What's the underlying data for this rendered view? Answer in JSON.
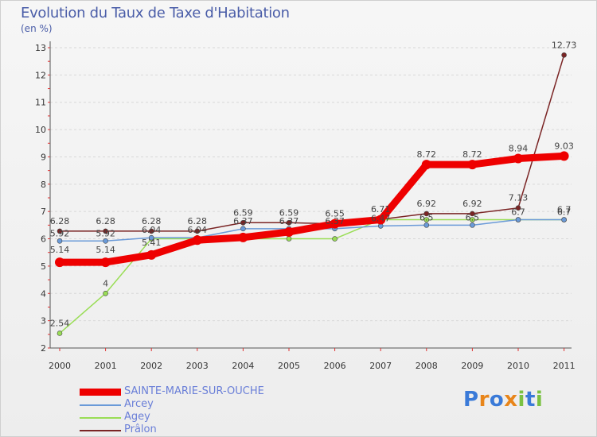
{
  "title": "Evolution du Taux de Taxe d'Habitation",
  "subtitle": "(en %)",
  "chart_data": {
    "type": "line",
    "title": "Evolution du Taux de Taxe d'Habitation",
    "ylabel": "(en %)",
    "xlabel": "",
    "x": [
      "2000",
      "2001",
      "2002",
      "2003",
      "2004",
      "2005",
      "2006",
      "2007",
      "2008",
      "2009",
      "2010",
      "2011"
    ],
    "ylim": [
      2,
      13
    ],
    "yticks": [
      "2",
      "3",
      "4",
      "5",
      "6",
      "7",
      "8",
      "9",
      "10",
      "11",
      "12",
      "13"
    ],
    "series": [
      {
        "name": "SAINTE-MARIE-SUR-OUCHE",
        "color": "#ee0000",
        "width": 9,
        "values": [
          5.14,
          5.14,
          5.41,
          5.95,
          6.05,
          6.25,
          6.55,
          6.7,
          8.72,
          8.72,
          8.94,
          9.03
        ],
        "labels": [
          "5.14",
          "5.14",
          "5.41",
          "",
          "",
          "",
          "",
          "",
          "8.72",
          "8.72",
          "8.94",
          "9.03"
        ]
      },
      {
        "name": "Arcey",
        "color": "#6a9ad8",
        "width": 1.5,
        "values": [
          5.92,
          5.92,
          6.04,
          6.04,
          6.37,
          6.37,
          6.37,
          6.47,
          6.5,
          6.5,
          6.7,
          6.7
        ],
        "labels": [
          "5.92",
          "5.92",
          "6.04",
          "6.04",
          "6.37",
          "6.37",
          "6.37",
          "6.47",
          "6.5",
          "6.5",
          "6.7",
          "6.7"
        ]
      },
      {
        "name": "Agey",
        "color": "#99dd55",
        "width": 1.5,
        "values": [
          2.54,
          4.0,
          6.0,
          6.0,
          6.0,
          6.0,
          6.0,
          6.7,
          6.7,
          6.7,
          6.7,
          6.7
        ],
        "labels": [
          "2.54",
          "4",
          "",
          "",
          "",
          "",
          "",
          "",
          "",
          "",
          "",
          "6.7"
        ]
      },
      {
        "name": "Prâlon",
        "color": "#7a2424",
        "width": 1.5,
        "values": [
          6.28,
          6.28,
          6.28,
          6.28,
          6.59,
          6.59,
          6.55,
          6.71,
          6.92,
          6.92,
          7.13,
          12.73
        ],
        "labels": [
          "6.28",
          "6.28",
          "6.28",
          "6.28",
          "6.59",
          "6.59",
          "6.55",
          "6.71",
          "6.92",
          "6.92",
          "7.13",
          "12.73"
        ]
      }
    ]
  },
  "legend": [
    {
      "label": "SAINTE-MARIE-SUR-OUCHE",
      "color": "#ee0000"
    },
    {
      "label": "Arcey",
      "color": "#6a9ad8"
    },
    {
      "label": "Agey",
      "color": "#99dd55"
    },
    {
      "label": "Prâlon",
      "color": "#7a2424"
    }
  ],
  "logo": {
    "text": "Proxiti"
  }
}
